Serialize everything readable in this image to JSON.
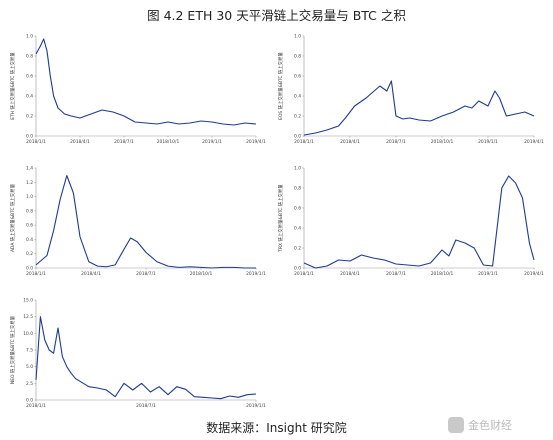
{
  "figure": {
    "title": "图 4.2 ETH 30 天平滑链上交易量与 BTC 之积",
    "source": "数据来源：Insight 研究院",
    "watermark_icon": "exchange-logo-icon",
    "watermark_text": "金色财经"
  },
  "chart_data": [
    {
      "type": "line",
      "ylabel": "ETH 链上交易量&BTC 链上交易量",
      "ylim": [
        0,
        1.0
      ],
      "yticks": [
        "0.0",
        "0.2",
        "0.4",
        "0.6",
        "0.8",
        "1.0"
      ],
      "xticks": [
        "2018/1/1",
        "2018/4/1",
        "2018/7/1",
        "2018/10/1",
        "2019/1/1",
        "2019/4/1"
      ],
      "series": [
        {
          "x": [
            0,
            0.02,
            0.035,
            0.05,
            0.065,
            0.08,
            0.1,
            0.13,
            0.16,
            0.2,
            0.25,
            0.3,
            0.35,
            0.4,
            0.45,
            0.5,
            0.55,
            0.6,
            0.65,
            0.7,
            0.75,
            0.8,
            0.85,
            0.9,
            0.95,
            1.0
          ],
          "values": [
            0.82,
            0.9,
            0.97,
            0.85,
            0.6,
            0.4,
            0.28,
            0.22,
            0.2,
            0.18,
            0.22,
            0.26,
            0.24,
            0.2,
            0.14,
            0.13,
            0.12,
            0.14,
            0.12,
            0.13,
            0.15,
            0.14,
            0.12,
            0.11,
            0.13,
            0.12
          ]
        }
      ]
    },
    {
      "type": "line",
      "ylabel": "EOS 链上交易量&BTC 链上交易量",
      "ylim": [
        0,
        1.0
      ],
      "yticks": [
        "0.0",
        "0.2",
        "0.4",
        "0.6",
        "0.8",
        "1.0"
      ],
      "xticks": [
        "2018/1/1",
        "2018/4/1",
        "2018/7/1",
        "2018/10/1",
        "2019/1/1",
        "2019/4/1"
      ],
      "series": [
        {
          "x": [
            0,
            0.05,
            0.1,
            0.15,
            0.18,
            0.22,
            0.27,
            0.3,
            0.33,
            0.36,
            0.38,
            0.4,
            0.43,
            0.46,
            0.5,
            0.55,
            0.6,
            0.65,
            0.7,
            0.73,
            0.76,
            0.8,
            0.83,
            0.85,
            0.88,
            0.92,
            0.96,
            1.0
          ],
          "values": [
            0.01,
            0.03,
            0.06,
            0.1,
            0.18,
            0.3,
            0.38,
            0.44,
            0.5,
            0.45,
            0.55,
            0.2,
            0.17,
            0.18,
            0.16,
            0.15,
            0.2,
            0.24,
            0.3,
            0.28,
            0.35,
            0.3,
            0.45,
            0.38,
            0.2,
            0.22,
            0.24,
            0.2
          ]
        }
      ]
    },
    {
      "type": "line",
      "ylabel": "ADA 链上交易量&BTC 链上交易量",
      "ylim": [
        0,
        1.6
      ],
      "yticks": [
        "0.0",
        "0.2",
        "0.4",
        "0.6",
        "0.8",
        "1.0",
        "1.2",
        "1.4"
      ],
      "xticks": [
        "2018/1/1",
        "2018/4/1",
        "2018/7/1",
        "2018/10/1",
        "2019/1/1"
      ],
      "series": [
        {
          "x": [
            0,
            0.05,
            0.08,
            0.11,
            0.14,
            0.17,
            0.2,
            0.24,
            0.28,
            0.32,
            0.36,
            0.4,
            0.43,
            0.46,
            0.5,
            0.55,
            0.6,
            0.65,
            0.7,
            0.75,
            0.8,
            0.85,
            0.9,
            0.95,
            1.0
          ],
          "values": [
            0.05,
            0.2,
            0.6,
            1.1,
            1.48,
            1.2,
            0.5,
            0.1,
            0.03,
            0.02,
            0.05,
            0.3,
            0.48,
            0.42,
            0.25,
            0.1,
            0.03,
            0.01,
            0.02,
            0.01,
            0.0,
            0.01,
            0.01,
            0.0,
            0.0
          ]
        }
      ]
    },
    {
      "type": "line",
      "ylabel": "TRX 链上交易量&BTC 链上交易量",
      "ylim": [
        0,
        1.0
      ],
      "yticks": [
        "0.0",
        "0.2",
        "0.4",
        "0.6",
        "0.8",
        "1.0"
      ],
      "xticks": [
        "2018/1/1",
        "2018/4/1",
        "2018/7/1",
        "2018/10/1",
        "2019/1/1",
        "2019/4/1"
      ],
      "series": [
        {
          "x": [
            0,
            0.05,
            0.1,
            0.15,
            0.2,
            0.25,
            0.3,
            0.35,
            0.4,
            0.45,
            0.5,
            0.55,
            0.6,
            0.63,
            0.66,
            0.7,
            0.74,
            0.78,
            0.82,
            0.86,
            0.89,
            0.92,
            0.95,
            0.98,
            1.0
          ],
          "values": [
            0.05,
            0.0,
            0.02,
            0.08,
            0.07,
            0.13,
            0.1,
            0.08,
            0.04,
            0.03,
            0.02,
            0.05,
            0.18,
            0.12,
            0.28,
            0.25,
            0.2,
            0.03,
            0.02,
            0.8,
            0.92,
            0.85,
            0.7,
            0.25,
            0.08
          ]
        }
      ]
    },
    {
      "type": "line",
      "ylabel": "NEO 链上交易量&BTC 链上交易量",
      "ylim": [
        0,
        15
      ],
      "yticks": [
        "0.0",
        "2.5",
        "5.0",
        "7.5",
        "10.0",
        "12.5",
        "15.0"
      ],
      "xticks": [
        "2018/1/1",
        "2018/7/1",
        "2019/1/1"
      ],
      "series": [
        {
          "x": [
            0,
            0.02,
            0.04,
            0.06,
            0.08,
            0.1,
            0.12,
            0.14,
            0.16,
            0.18,
            0.2,
            0.24,
            0.28,
            0.32,
            0.36,
            0.4,
            0.44,
            0.48,
            0.52,
            0.56,
            0.6,
            0.64,
            0.68,
            0.72,
            0.76,
            0.8,
            0.84,
            0.88,
            0.92,
            0.96,
            1.0
          ],
          "values": [
            3,
            12.5,
            9,
            7.5,
            7,
            10.8,
            6.5,
            5,
            4,
            3.2,
            2.8,
            2,
            1.8,
            1.5,
            0.5,
            2.5,
            1.5,
            2.5,
            1.2,
            2,
            0.8,
            2,
            1.6,
            0.5,
            0.4,
            0.3,
            0.2,
            0.6,
            0.4,
            0.8,
            0.9
          ]
        }
      ]
    }
  ]
}
